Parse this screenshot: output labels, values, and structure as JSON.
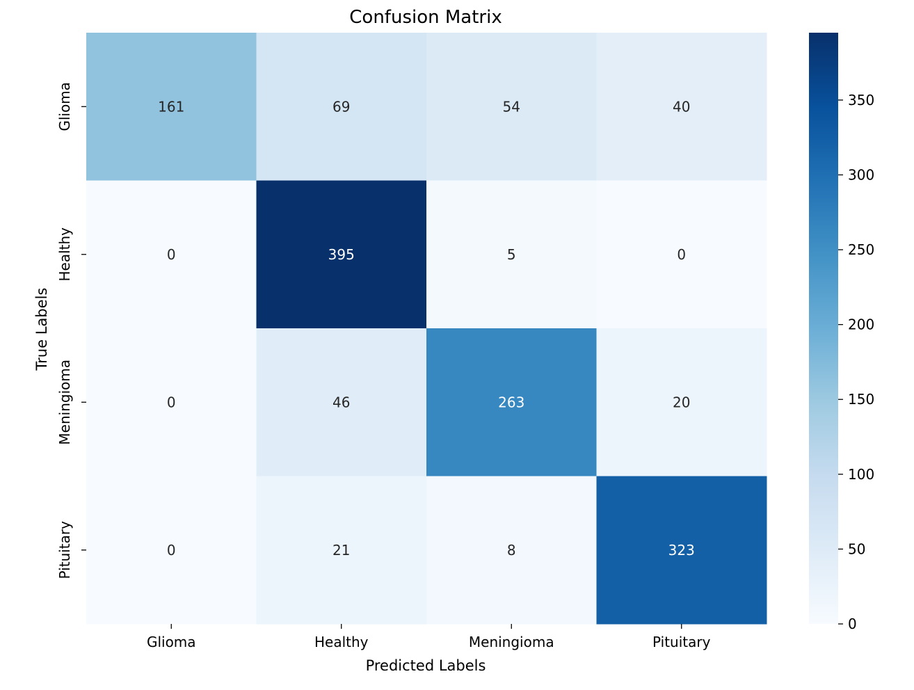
{
  "chart_data": {
    "type": "heatmap",
    "title": "Confusion Matrix",
    "xlabel": "Predicted Labels",
    "ylabel": "True Labels",
    "x_categories": [
      "Glioma",
      "Healthy",
      "Meningioma",
      "Pituitary"
    ],
    "y_categories": [
      "Glioma",
      "Healthy",
      "Meningioma",
      "Pituitary"
    ],
    "values": [
      [
        161,
        69,
        54,
        40
      ],
      [
        0,
        395,
        5,
        0
      ],
      [
        0,
        46,
        263,
        20
      ],
      [
        0,
        21,
        8,
        323
      ]
    ],
    "colorbar": {
      "colormap": "Blues",
      "range": [
        0,
        395
      ],
      "ticks": [
        0,
        50,
        100,
        150,
        200,
        250,
        300,
        350
      ]
    },
    "grid": false
  }
}
